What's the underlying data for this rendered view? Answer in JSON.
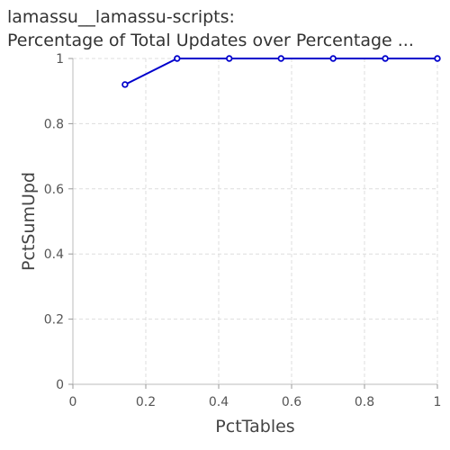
{
  "chart_data": {
    "type": "line",
    "title_line1": "lamassu__lamassu-scripts:",
    "title_line2": "Percentage of Total Updates over Percentage ...",
    "xlabel": "PctTables",
    "ylabel": "PctSumUpd",
    "xlim": [
      0,
      1
    ],
    "ylim": [
      0,
      1
    ],
    "xticks": [
      "0",
      "0.2",
      "0.4",
      "0.6",
      "0.8",
      "1"
    ],
    "yticks": [
      "0",
      "0.2",
      "0.4",
      "0.6",
      "0.8",
      "1"
    ],
    "grid": true,
    "series": [
      {
        "color": "#0000cc",
        "x": [
          0.143,
          0.286,
          0.429,
          0.571,
          0.714,
          0.857,
          1.0
        ],
        "y": [
          0.92,
          1.0,
          1.0,
          1.0,
          1.0,
          1.0,
          1.0
        ]
      }
    ]
  }
}
